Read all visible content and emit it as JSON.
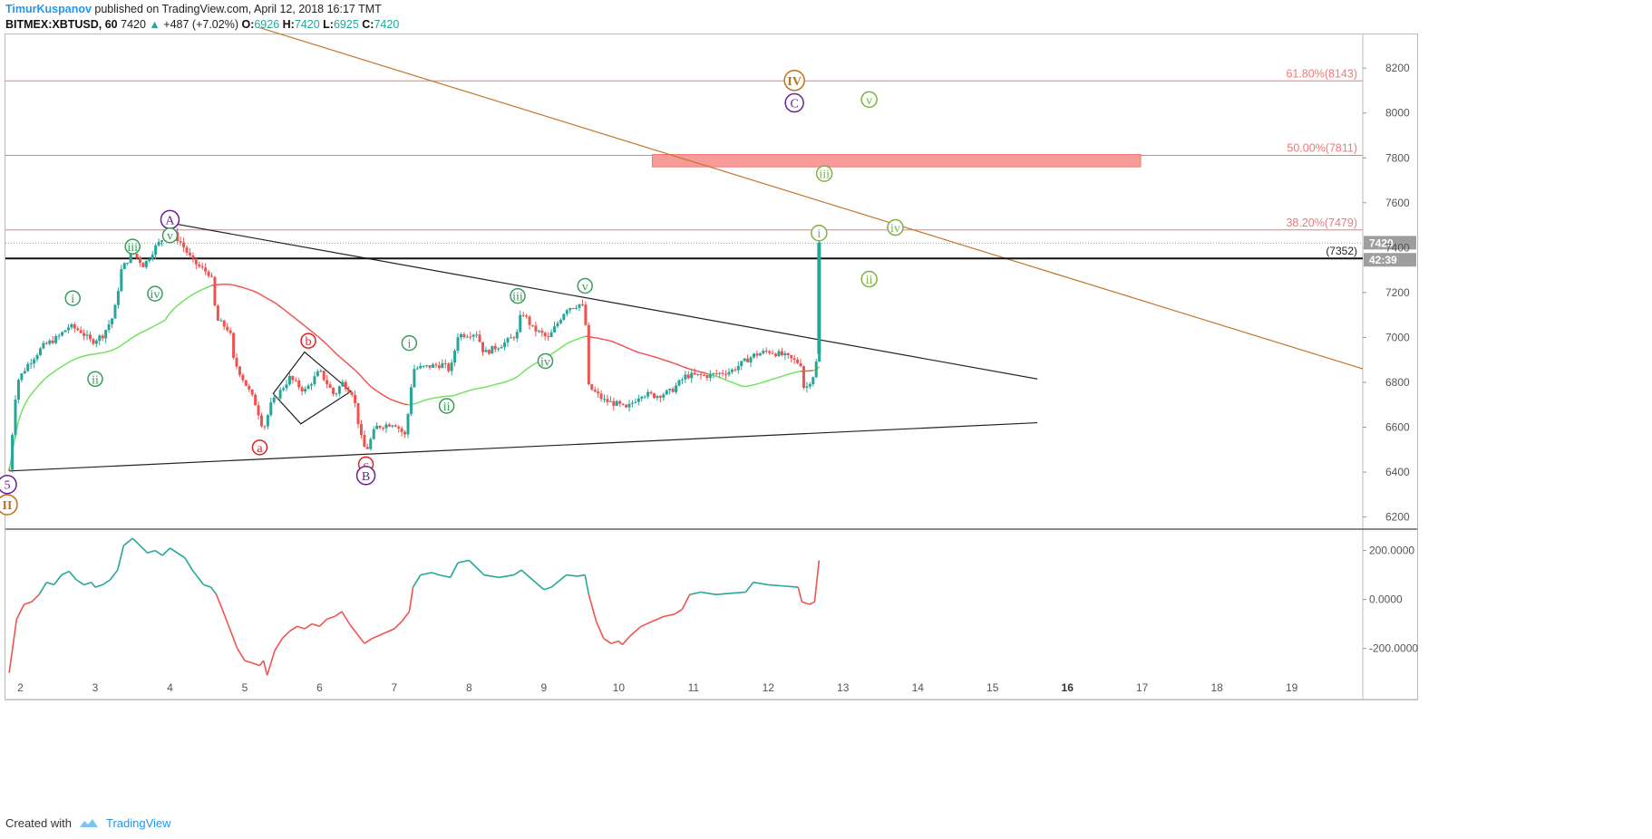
{
  "header": {
    "author": "TimurKuspanov",
    "published_text": "published on TradingView.com, April 12, 2018 16:17 TMT",
    "symbol": "BITMEX:XBTUSD, 60",
    "last": "7420",
    "change": "+487 (+7.02%)",
    "o_label": "O:",
    "o_value": "6926",
    "h_label": "H:",
    "h_value": "7420",
    "l_label": "L:",
    "l_value": "6925",
    "c_label": "C:",
    "c_value": "7420"
  },
  "footer": {
    "created_with": "Created with",
    "brand": "TradingView"
  },
  "colors": {
    "bull": "#26a69a",
    "bear": "#ef5350",
    "fib": "#f07878",
    "trend_brown": "#c0782a",
    "triangle": "#222222",
    "ma_green": "#6fe35b",
    "ma_red": "#ef5350",
    "wave_green": "#3a9b5a",
    "wave_red": "#e02020",
    "wave_purple": "#6a1b9a",
    "wave_orange": "#c0701a",
    "wave_lightgreen": "#7cb342"
  },
  "chart_data": [
    {
      "type": "candlestick",
      "ylim": [
        6150,
        8350
      ],
      "x_ticks": [
        "2",
        "3",
        "4",
        "5",
        "6",
        "7",
        "8",
        "9",
        "10",
        "11",
        "12",
        "13",
        "14",
        "15",
        "16",
        "17",
        "18",
        "19",
        "2"
      ],
      "x_ticks_bold": [
        "16"
      ],
      "x_range_days": [
        1.8,
        19.95
      ],
      "y_ticks": [
        "6200",
        "6400",
        "6600",
        "6800",
        "7000",
        "7200",
        "7400",
        "7600",
        "7800",
        "8000",
        "8200"
      ],
      "price_labels": {
        "last": "7420",
        "timer": "42:39",
        "hline": "(7352)"
      },
      "horizontal_line": 7352,
      "last_price": 7420,
      "fib_levels": [
        {
          "label": "61.80%(8143)",
          "value": 8143
        },
        {
          "label": "50.00%(7811)",
          "value": 7811
        },
        {
          "label": "38.20%(7479)",
          "value": 7479
        }
      ],
      "target_zone": {
        "day_from": 10.45,
        "day_to": 16.98,
        "low": 7760,
        "high": 7815
      },
      "trendlines": [
        {
          "name": "upper-triangle",
          "from": [
            4.0,
            7510
          ],
          "to": [
            15.6,
            6815
          ]
        },
        {
          "name": "lower-triangle",
          "from": [
            1.85,
            6405
          ],
          "to": [
            15.6,
            6620
          ]
        },
        {
          "name": "descending-resistance",
          "from": [
            5.2,
            8380
          ],
          "to": [
            19.95,
            6860
          ]
        }
      ],
      "diamond": [
        [
          5.38,
          6750
        ],
        [
          5.8,
          6935
        ],
        [
          6.42,
          6760
        ],
        [
          5.75,
          6615
        ]
      ],
      "series_path": [
        [
          1.85,
          6410
        ],
        [
          1.95,
          6800
        ],
        [
          2.1,
          6880
        ],
        [
          2.3,
          6960
        ],
        [
          2.5,
          7000
        ],
        [
          2.65,
          7050
        ],
        [
          2.8,
          7030
        ],
        [
          2.95,
          6980
        ],
        [
          3.1,
          7010
        ],
        [
          3.25,
          7100
        ],
        [
          3.35,
          7300
        ],
        [
          3.5,
          7380
        ],
        [
          3.65,
          7320
        ],
        [
          3.8,
          7400
        ],
        [
          4.0,
          7480
        ],
        [
          4.15,
          7420
        ],
        [
          4.3,
          7340
        ],
        [
          4.45,
          7300
        ],
        [
          4.55,
          7280
        ],
        [
          4.62,
          7080
        ],
        [
          4.8,
          7030
        ],
        [
          4.85,
          6900
        ],
        [
          5.0,
          6800
        ],
        [
          5.15,
          6700
        ],
        [
          5.25,
          6590
        ],
        [
          5.35,
          6700
        ],
        [
          5.6,
          6820
        ],
        [
          5.8,
          6760
        ],
        [
          6.0,
          6850
        ],
        [
          6.2,
          6740
        ],
        [
          6.3,
          6800
        ],
        [
          6.45,
          6750
        ],
        [
          6.55,
          6560
        ],
        [
          6.62,
          6490
        ],
        [
          6.75,
          6600
        ],
        [
          7.0,
          6620
        ],
        [
          7.15,
          6560
        ],
        [
          7.25,
          6860
        ],
        [
          7.45,
          6870
        ],
        [
          7.65,
          6880
        ],
        [
          7.75,
          6850
        ],
        [
          7.85,
          7010
        ],
        [
          8.1,
          7020
        ],
        [
          8.2,
          6930
        ],
        [
          8.5,
          6980
        ],
        [
          8.65,
          7020
        ],
        [
          8.7,
          7120
        ],
        [
          8.85,
          7040
        ],
        [
          9.0,
          7010
        ],
        [
          9.05,
          6990
        ],
        [
          9.3,
          7130
        ],
        [
          9.5,
          7150
        ],
        [
          9.55,
          7110
        ],
        [
          9.6,
          6780
        ],
        [
          9.8,
          6720
        ],
        [
          10.0,
          6700
        ],
        [
          10.1,
          6680
        ],
        [
          10.3,
          6750
        ],
        [
          10.5,
          6740
        ],
        [
          10.7,
          6760
        ],
        [
          10.9,
          6830
        ],
        [
          11.2,
          6830
        ],
        [
          11.5,
          6850
        ],
        [
          11.8,
          6920
        ],
        [
          12.0,
          6940
        ],
        [
          12.2,
          6920
        ],
        [
          12.45,
          6880
        ],
        [
          12.48,
          6760
        ],
        [
          12.6,
          6830
        ],
        [
          12.65,
          6900
        ],
        [
          12.68,
          7420
        ]
      ],
      "wave_labels": [
        {
          "text": "A",
          "day": 4.0,
          "price": 7525,
          "style": "purple"
        },
        {
          "text": "v",
          "day": 4.0,
          "price": 7455,
          "style": "green-outline"
        },
        {
          "text": "iii",
          "day": 3.5,
          "price": 7405,
          "style": "green-outline"
        },
        {
          "text": "i",
          "day": 2.7,
          "price": 7175,
          "style": "green-outline"
        },
        {
          "text": "iv",
          "day": 3.8,
          "price": 7195,
          "style": "green-outline"
        },
        {
          "text": "ii",
          "day": 3.0,
          "price": 6815,
          "style": "green-outline"
        },
        {
          "text": "a",
          "day": 5.2,
          "price": 6510,
          "style": "red-outline"
        },
        {
          "text": "b",
          "day": 5.85,
          "price": 6985,
          "style": "red-outline"
        },
        {
          "text": "c",
          "day": 6.62,
          "price": 6435,
          "style": "red-outline"
        },
        {
          "text": "B",
          "day": 6.62,
          "price": 6385,
          "style": "purple"
        },
        {
          "text": "i",
          "day": 7.2,
          "price": 6975,
          "style": "green-outline"
        },
        {
          "text": "ii",
          "day": 7.7,
          "price": 6695,
          "style": "green-outline"
        },
        {
          "text": "iii",
          "day": 8.65,
          "price": 7185,
          "style": "green-outline"
        },
        {
          "text": "iv",
          "day": 9.02,
          "price": 6895,
          "style": "green-outline"
        },
        {
          "text": "v",
          "day": 9.55,
          "price": 7230,
          "style": "green-outline"
        },
        {
          "text": "IV",
          "day": 12.35,
          "price": 8145,
          "style": "orange"
        },
        {
          "text": "C",
          "day": 12.35,
          "price": 8045,
          "style": "purple"
        },
        {
          "text": "v",
          "day": 13.35,
          "price": 8060,
          "style": "lightgreen-outline"
        },
        {
          "text": "iii",
          "day": 12.75,
          "price": 7730,
          "style": "lightgreen-outline"
        },
        {
          "text": "iv",
          "day": 13.7,
          "price": 7490,
          "style": "lightgreen-outline"
        },
        {
          "text": "i",
          "day": 12.68,
          "price": 7465,
          "style": "lightgreen-outline"
        },
        {
          "text": "ii",
          "day": 13.35,
          "price": 7260,
          "style": "lightgreen-outline"
        },
        {
          "text": "5",
          "day": 1.82,
          "price": 6345,
          "style": "purple"
        },
        {
          "text": "II",
          "day": 1.82,
          "price": 6255,
          "style": "orange"
        }
      ]
    },
    {
      "type": "line",
      "name": "oscillator",
      "ylim": [
        -320,
        280
      ],
      "y_ticks": [
        "200.0000",
        "0.0000",
        "-200.0000"
      ],
      "y_tick_values": [
        200,
        0,
        -200
      ],
      "points": [
        [
          1.85,
          -300
        ],
        [
          1.95,
          -80
        ],
        [
          2.05,
          -20
        ],
        [
          2.15,
          -10
        ],
        [
          2.25,
          20
        ],
        [
          2.35,
          70
        ],
        [
          2.45,
          60
        ],
        [
          2.55,
          100
        ],
        [
          2.65,
          115
        ],
        [
          2.75,
          80
        ],
        [
          2.85,
          60
        ],
        [
          2.95,
          70
        ],
        [
          3.0,
          50
        ],
        [
          3.1,
          60
        ],
        [
          3.2,
          80
        ],
        [
          3.3,
          120
        ],
        [
          3.38,
          220
        ],
        [
          3.5,
          250
        ],
        [
          3.6,
          220
        ],
        [
          3.7,
          190
        ],
        [
          3.8,
          200
        ],
        [
          3.9,
          180
        ],
        [
          4.0,
          210
        ],
        [
          4.1,
          190
        ],
        [
          4.2,
          170
        ],
        [
          4.3,
          120
        ],
        [
          4.45,
          60
        ],
        [
          4.55,
          50
        ],
        [
          4.62,
          20
        ],
        [
          4.7,
          -40
        ],
        [
          4.8,
          -120
        ],
        [
          4.9,
          -200
        ],
        [
          5.0,
          -250
        ],
        [
          5.1,
          -260
        ],
        [
          5.2,
          -270
        ],
        [
          5.25,
          -250
        ],
        [
          5.3,
          -310
        ],
        [
          5.4,
          -210
        ],
        [
          5.5,
          -160
        ],
        [
          5.6,
          -130
        ],
        [
          5.7,
          -110
        ],
        [
          5.8,
          -120
        ],
        [
          5.9,
          -100
        ],
        [
          6.0,
          -110
        ],
        [
          6.1,
          -80
        ],
        [
          6.2,
          -70
        ],
        [
          6.3,
          -50
        ],
        [
          6.4,
          -100
        ],
        [
          6.5,
          -140
        ],
        [
          6.6,
          -180
        ],
        [
          6.7,
          -160
        ],
        [
          6.85,
          -140
        ],
        [
          7.0,
          -120
        ],
        [
          7.1,
          -90
        ],
        [
          7.2,
          -50
        ],
        [
          7.25,
          50
        ],
        [
          7.35,
          100
        ],
        [
          7.5,
          110
        ],
        [
          7.6,
          100
        ],
        [
          7.75,
          90
        ],
        [
          7.85,
          150
        ],
        [
          8.0,
          160
        ],
        [
          8.1,
          130
        ],
        [
          8.2,
          100
        ],
        [
          8.4,
          90
        ],
        [
          8.6,
          100
        ],
        [
          8.7,
          120
        ],
        [
          8.85,
          80
        ],
        [
          9.0,
          40
        ],
        [
          9.1,
          50
        ],
        [
          9.3,
          100
        ],
        [
          9.45,
          95
        ],
        [
          9.55,
          100
        ],
        [
          9.6,
          20
        ],
        [
          9.7,
          -90
        ],
        [
          9.8,
          -160
        ],
        [
          9.9,
          -180
        ],
        [
          10.0,
          -170
        ],
        [
          10.05,
          -185
        ],
        [
          10.15,
          -150
        ],
        [
          10.3,
          -110
        ],
        [
          10.45,
          -90
        ],
        [
          10.6,
          -70
        ],
        [
          10.75,
          -60
        ],
        [
          10.85,
          -40
        ],
        [
          10.95,
          20
        ],
        [
          11.1,
          30
        ],
        [
          11.3,
          20
        ],
        [
          11.5,
          25
        ],
        [
          11.7,
          30
        ],
        [
          11.8,
          70
        ],
        [
          12.0,
          60
        ],
        [
          12.2,
          55
        ],
        [
          12.4,
          50
        ],
        [
          12.45,
          -10
        ],
        [
          12.55,
          -20
        ],
        [
          12.62,
          -10
        ],
        [
          12.68,
          160
        ]
      ],
      "sign_split": 0
    }
  ]
}
